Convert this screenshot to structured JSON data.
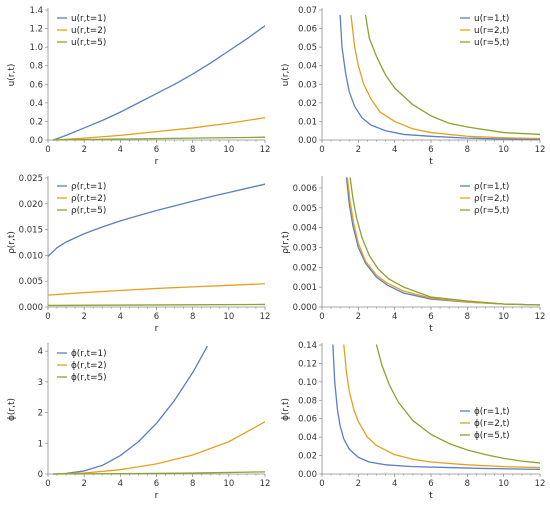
{
  "chart_data": [
    {
      "type": "line",
      "xlabel": "r",
      "ylabel": "u(r,t)",
      "xlim": [
        0,
        12
      ],
      "ylim": [
        0,
        1.4
      ],
      "xticks": [
        "0",
        "2",
        "4",
        "6",
        "8",
        "10",
        "12"
      ],
      "yticks": [
        "0.0",
        "0.2",
        "0.4",
        "0.6",
        "0.8",
        "1.0",
        "1.2",
        "1.4"
      ],
      "legend_position": "top-left",
      "series": [
        {
          "name": "u(r,t=1)",
          "color": "#5b7fbf",
          "x": [
            0.3,
            1,
            2,
            3,
            4,
            5,
            6,
            7,
            8,
            9,
            10,
            11,
            12
          ],
          "y": [
            0.0,
            0.05,
            0.13,
            0.21,
            0.3,
            0.4,
            0.5,
            0.6,
            0.71,
            0.83,
            0.96,
            1.09,
            1.23
          ]
        },
        {
          "name": "u(r,t=2)",
          "color": "#e6a021",
          "x": [
            0.3,
            2,
            4,
            6,
            8,
            10,
            12
          ],
          "y": [
            0.0,
            0.02,
            0.05,
            0.09,
            0.13,
            0.18,
            0.24
          ]
        },
        {
          "name": "u(r,t=5)",
          "color": "#8aa331",
          "x": [
            0.3,
            4,
            8,
            12
          ],
          "y": [
            0.0,
            0.01,
            0.02,
            0.03
          ]
        }
      ]
    },
    {
      "type": "line",
      "xlabel": "t",
      "ylabel": "u(r,t)",
      "xlim": [
        0,
        12
      ],
      "ylim": [
        0,
        0.07
      ],
      "xticks": [
        "0",
        "2",
        "4",
        "6",
        "8",
        "10",
        "12"
      ],
      "yticks": [
        "0.00",
        "0.01",
        "0.02",
        "0.03",
        "0.04",
        "0.05",
        "0.06",
        "0.07"
      ],
      "legend_position": "top-right",
      "series": [
        {
          "name": "u(r=1,t)",
          "color": "#5b7fbf",
          "x": [
            1.0,
            1.1,
            1.3,
            1.5,
            1.8,
            2.2,
            2.7,
            3.5,
            4.5,
            6,
            8,
            10,
            12
          ],
          "y": [
            0.067,
            0.05,
            0.036,
            0.026,
            0.018,
            0.012,
            0.008,
            0.005,
            0.003,
            0.002,
            0.001,
            0.0005,
            0.0003
          ]
        },
        {
          "name": "u(r=2,t)",
          "color": "#e6a021",
          "x": [
            1.6,
            1.8,
            2,
            2.3,
            2.7,
            3.2,
            4,
            5,
            6,
            8,
            10,
            12
          ],
          "y": [
            0.067,
            0.05,
            0.04,
            0.03,
            0.022,
            0.015,
            0.01,
            0.006,
            0.004,
            0.002,
            0.0012,
            0.0008
          ]
        },
        {
          "name": "u(r=5,t)",
          "color": "#8aa331",
          "x": [
            2.4,
            2.6,
            3,
            3.5,
            4,
            5,
            6,
            7,
            8,
            10,
            12
          ],
          "y": [
            0.067,
            0.055,
            0.045,
            0.035,
            0.028,
            0.019,
            0.013,
            0.009,
            0.007,
            0.004,
            0.003
          ]
        }
      ]
    },
    {
      "type": "line",
      "xlabel": "r",
      "ylabel": "ρ(r,t)",
      "xlim": [
        0,
        12
      ],
      "ylim": [
        0,
        0.025
      ],
      "xticks": [
        "0",
        "2",
        "4",
        "6",
        "8",
        "10",
        "12"
      ],
      "yticks": [
        "0.000",
        "0.005",
        "0.010",
        "0.015",
        "0.020",
        "0.025"
      ],
      "legend_position": "top-left",
      "series": [
        {
          "name": "ρ(r,t=1)",
          "color": "#5b7fbf",
          "x": [
            0,
            0.5,
            1,
            2,
            3,
            4,
            5,
            6,
            7,
            8,
            9,
            10,
            11,
            12
          ],
          "y": [
            0.0098,
            0.0115,
            0.0126,
            0.0142,
            0.0155,
            0.0167,
            0.0177,
            0.0187,
            0.0196,
            0.0205,
            0.0214,
            0.0222,
            0.023,
            0.0238
          ]
        },
        {
          "name": "ρ(r,t=2)",
          "color": "#e6a021",
          "x": [
            0,
            2,
            4,
            6,
            8,
            10,
            12
          ],
          "y": [
            0.0023,
            0.0028,
            0.0032,
            0.0036,
            0.0039,
            0.0042,
            0.0045
          ]
        },
        {
          "name": "ρ(r,t=5)",
          "color": "#8aa331",
          "x": [
            0,
            6,
            12
          ],
          "y": [
            0.0003,
            0.0004,
            0.0005
          ]
        }
      ]
    },
    {
      "type": "line",
      "xlabel": "t",
      "ylabel": "ρ(r,t)",
      "xlim": [
        0,
        12
      ],
      "ylim": [
        0,
        0.0065
      ],
      "xticks": [
        "0",
        "2",
        "4",
        "6",
        "8",
        "10",
        "12"
      ],
      "yticks": [
        "0.000",
        "0.001",
        "0.002",
        "0.003",
        "0.004",
        "0.005",
        "0.006"
      ],
      "legend_position": "top-right",
      "series": [
        {
          "name": "ρ(r=1,t)",
          "color": "#5b7fbf",
          "x": [
            1.35,
            1.5,
            1.7,
            2,
            2.4,
            3,
            3.6,
            4.5,
            6,
            8,
            10,
            12
          ],
          "y": [
            0.0065,
            0.0052,
            0.0041,
            0.003,
            0.0022,
            0.0015,
            0.0011,
            0.0007,
            0.0004,
            0.00025,
            0.00015,
            0.0001
          ]
        },
        {
          "name": "ρ(r=2,t)",
          "color": "#e6a021",
          "x": [
            1.4,
            1.55,
            1.75,
            2,
            2.4,
            3,
            3.6,
            4.5,
            6,
            8,
            10,
            12
          ],
          "y": [
            0.0065,
            0.0053,
            0.0042,
            0.0032,
            0.0023,
            0.0016,
            0.0012,
            0.0008,
            0.00045,
            0.00025,
            0.00015,
            0.0001
          ]
        },
        {
          "name": "ρ(r=5,t)",
          "color": "#8aa331",
          "x": [
            1.55,
            1.7,
            1.9,
            2.2,
            2.6,
            3.1,
            3.7,
            4.5,
            6,
            8,
            10,
            12
          ],
          "y": [
            0.0065,
            0.0055,
            0.0045,
            0.0035,
            0.0026,
            0.0019,
            0.0014,
            0.001,
            0.0005,
            0.0003,
            0.00015,
            0.0001
          ]
        }
      ]
    },
    {
      "type": "line",
      "xlabel": "r",
      "ylabel": "ϕ(r,t)",
      "xlim": [
        0,
        12
      ],
      "ylim": [
        0,
        4.2
      ],
      "xticks": [
        "0",
        "2",
        "4",
        "6",
        "8",
        "10",
        "12"
      ],
      "yticks": [
        "0",
        "1",
        "2",
        "3",
        "4"
      ],
      "legend_position": "top-left",
      "series": [
        {
          "name": "ϕ(r,t=1)",
          "color": "#5b7fbf",
          "x": [
            0.3,
            1,
            2,
            3,
            4,
            5,
            6,
            7,
            8,
            8.8
          ],
          "y": [
            0.0,
            0.02,
            0.1,
            0.28,
            0.6,
            1.05,
            1.65,
            2.4,
            3.3,
            4.15
          ]
        },
        {
          "name": "ϕ(r,t=2)",
          "color": "#e6a021",
          "x": [
            0.3,
            2,
            4,
            6,
            8,
            10,
            12
          ],
          "y": [
            0.0,
            0.03,
            0.14,
            0.33,
            0.62,
            1.05,
            1.7
          ]
        },
        {
          "name": "ϕ(r,t=5)",
          "color": "#8aa331",
          "x": [
            0.3,
            4,
            8,
            12
          ],
          "y": [
            0.0,
            0.01,
            0.03,
            0.07
          ]
        }
      ]
    },
    {
      "type": "line",
      "xlabel": "t",
      "ylabel": "ϕ(r,t)",
      "xlim": [
        0,
        12
      ],
      "ylim": [
        0,
        0.14
      ],
      "xticks": [
        "0",
        "2",
        "4",
        "6",
        "8",
        "10",
        "12"
      ],
      "yticks": [
        "0.00",
        "0.02",
        "0.04",
        "0.06",
        "0.08",
        "0.10",
        "0.12",
        "0.14"
      ],
      "legend_position": "bottom-right",
      "series": [
        {
          "name": "ϕ(r=1,t)",
          "color": "#5b7fbf",
          "x": [
            0.6,
            0.7,
            0.85,
            1,
            1.2,
            1.5,
            2,
            2.6,
            3.5,
            5,
            7,
            9,
            12
          ],
          "y": [
            0.14,
            0.1,
            0.07,
            0.052,
            0.038,
            0.027,
            0.018,
            0.013,
            0.01,
            0.008,
            0.007,
            0.006,
            0.005
          ]
        },
        {
          "name": "ϕ(r=2,t)",
          "color": "#e6a021",
          "x": [
            1.2,
            1.35,
            1.5,
            1.75,
            2,
            2.5,
            3,
            4,
            5,
            6,
            8,
            10,
            12
          ],
          "y": [
            0.14,
            0.11,
            0.09,
            0.07,
            0.057,
            0.04,
            0.031,
            0.021,
            0.016,
            0.013,
            0.01,
            0.008,
            0.007
          ]
        },
        {
          "name": "ϕ(r=5,t)",
          "color": "#8aa331",
          "x": [
            3.0,
            3.3,
            3.7,
            4.2,
            5,
            6,
            7,
            8,
            9,
            10,
            11,
            12
          ],
          "y": [
            0.14,
            0.118,
            0.097,
            0.078,
            0.058,
            0.043,
            0.033,
            0.026,
            0.021,
            0.017,
            0.014,
            0.012
          ]
        }
      ]
    }
  ]
}
